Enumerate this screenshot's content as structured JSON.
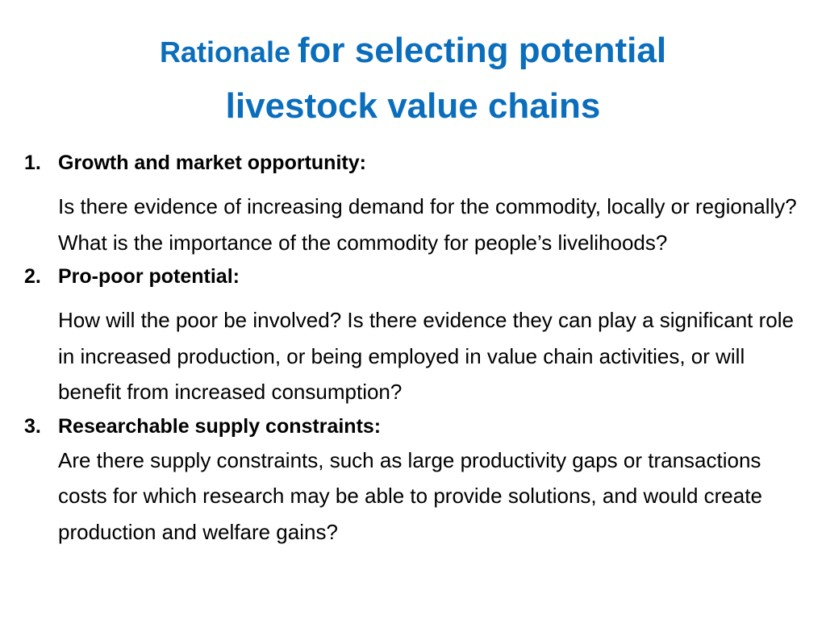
{
  "slide": {
    "title": {
      "part1": "Rationale",
      "part2": "for selecting potential",
      "part3": "livestock value chains"
    },
    "items": [
      {
        "number": "1.",
        "heading": "Growth and market opportunity:",
        "body": "Is there evidence of increasing demand for the commodity, locally or regionally? What is the importance of the commodity for people’s livelihoods?"
      },
      {
        "number": "2.",
        "heading": "Pro-poor potential:",
        "body": "How will the poor be involved? Is there evidence they can play a significant role in increased production, or being employed in value chain activities, or will benefit from increased consumption?"
      },
      {
        "number": "3.",
        "heading": "Researchable supply constraints:",
        "body": "Are there supply constraints, such as large productivity gaps or transactions costs for which research may be able to provide solutions, and would create production and welfare gains?"
      }
    ],
    "colors": {
      "title": "#0a6ebd",
      "text": "#000000",
      "background": "#ffffff"
    }
  }
}
